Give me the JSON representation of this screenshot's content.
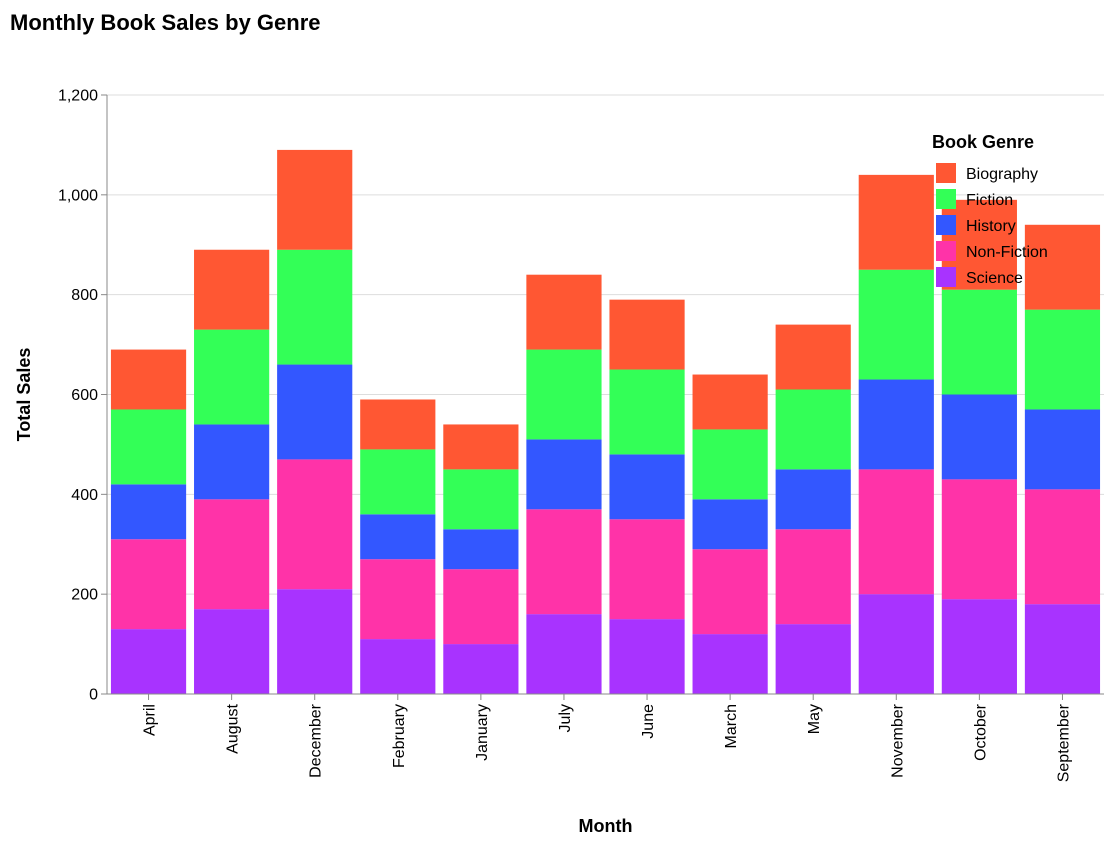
{
  "chart_data": {
    "type": "bar",
    "stacked": true,
    "title": "Monthly Book Sales by Genre",
    "xlabel": "Month",
    "ylabel": "Total Sales",
    "ylim": [
      0,
      1200
    ],
    "yticks": [
      0,
      200,
      400,
      600,
      800,
      1000,
      1200
    ],
    "ytick_labels": [
      "0",
      "200",
      "400",
      "600",
      "800",
      "1,000",
      "1,200"
    ],
    "grid": true,
    "legend": {
      "title": "Book Genre",
      "placement": "top-right"
    },
    "categories": [
      "April",
      "August",
      "December",
      "February",
      "January",
      "July",
      "June",
      "March",
      "May",
      "November",
      "October",
      "September"
    ],
    "series": [
      {
        "name": "Science",
        "color": "#a833ff",
        "values": [
          130,
          170,
          210,
          110,
          100,
          160,
          150,
          120,
          140,
          200,
          190,
          180
        ]
      },
      {
        "name": "Non-Fiction",
        "color": "#ff33a8",
        "values": [
          180,
          220,
          260,
          160,
          150,
          210,
          200,
          170,
          190,
          250,
          240,
          230
        ]
      },
      {
        "name": "History",
        "color": "#3357ff",
        "values": [
          110,
          150,
          190,
          90,
          80,
          140,
          130,
          100,
          120,
          180,
          170,
          160
        ]
      },
      {
        "name": "Fiction",
        "color": "#33ff57",
        "values": [
          150,
          190,
          230,
          130,
          120,
          180,
          170,
          140,
          160,
          220,
          210,
          200
        ]
      },
      {
        "name": "Biography",
        "color": "#ff5733",
        "values": [
          120,
          160,
          200,
          100,
          90,
          150,
          140,
          110,
          130,
          190,
          180,
          170
        ]
      }
    ],
    "legend_order": [
      "Biography",
      "Fiction",
      "History",
      "Non-Fiction",
      "Science"
    ]
  }
}
